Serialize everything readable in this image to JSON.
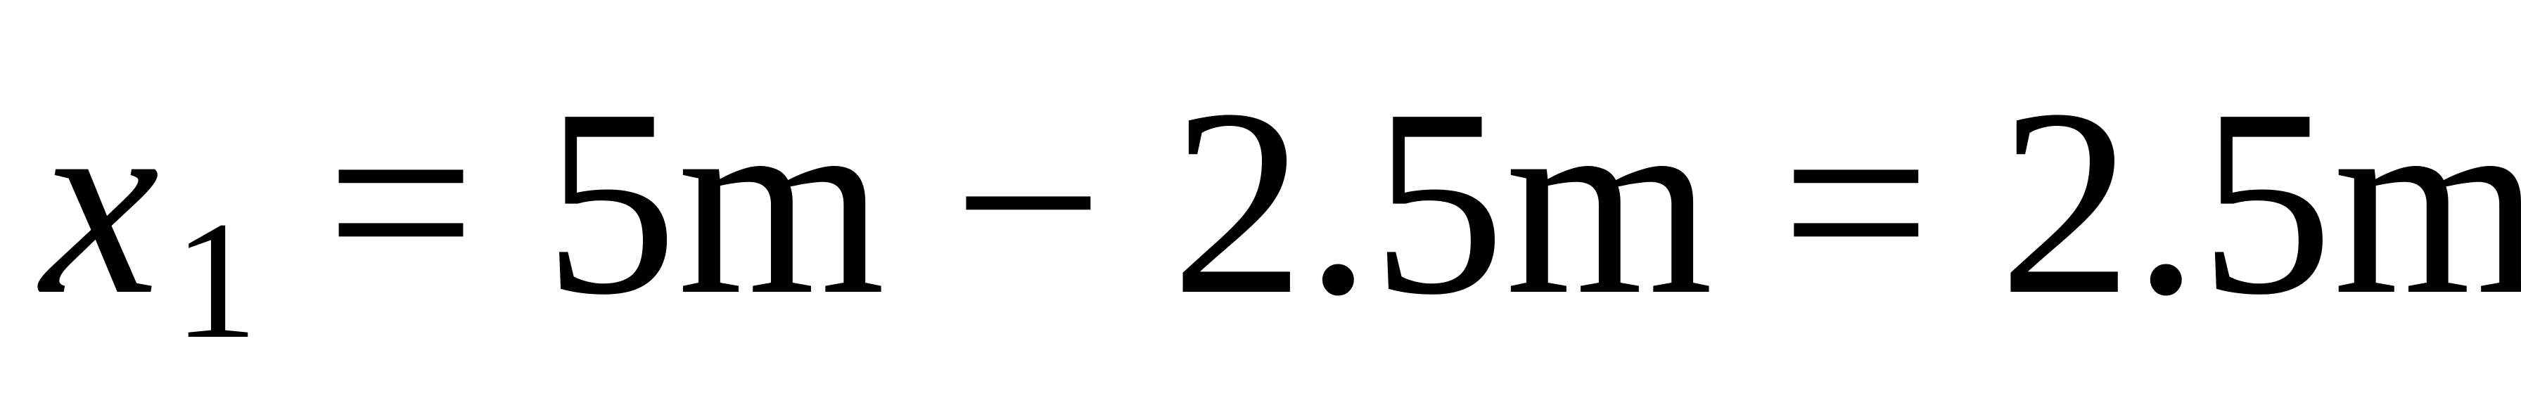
{
  "equation": {
    "variable": "x",
    "subscript": "1",
    "equals_1": "=",
    "term_1": "5m",
    "minus": "−",
    "term_2": "2.5m",
    "equals_2": "=",
    "result": "2.5m"
  }
}
